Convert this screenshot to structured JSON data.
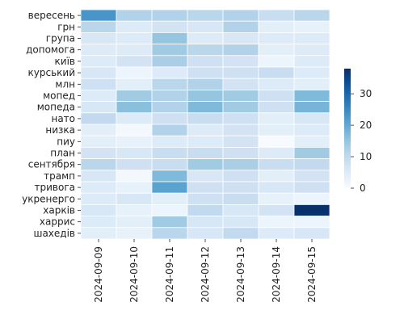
{
  "chart_data": {
    "type": "heatmap",
    "title": "",
    "xlabel": "",
    "ylabel": "",
    "x": [
      "2024-09-09",
      "2024-09-10",
      "2024-09-11",
      "2024-09-12",
      "2024-09-13",
      "2024-09-14",
      "2024-09-15"
    ],
    "y": [
      "вересень",
      "грн",
      "група",
      "допомога",
      "київ",
      "курський",
      "млн",
      "мопед",
      "мопеда",
      "нато",
      "низка",
      "пиу",
      "план",
      "сентября",
      "трамп",
      "тривога",
      "укренерго",
      "харків",
      "харрис",
      "шахедів"
    ],
    "values": [
      [
        23,
        12,
        12,
        11,
        12,
        9,
        11
      ],
      [
        11,
        5,
        7,
        6,
        12,
        4,
        3
      ],
      [
        6,
        5,
        15,
        5,
        6,
        5,
        5
      ],
      [
        5,
        5,
        14,
        11,
        12,
        4,
        5
      ],
      [
        5,
        7,
        13,
        8,
        7,
        2,
        5
      ],
      [
        6,
        2,
        5,
        8,
        8,
        9,
        5
      ],
      [
        8,
        4,
        11,
        12,
        7,
        5,
        4
      ],
      [
        5,
        14,
        12,
        15,
        14,
        8,
        17
      ],
      [
        6,
        16,
        12,
        17,
        14,
        8,
        18
      ],
      [
        10,
        5,
        8,
        9,
        8,
        4,
        6
      ],
      [
        4,
        1,
        12,
        5,
        7,
        4,
        5
      ],
      [
        4,
        3,
        5,
        5,
        7,
        0,
        4
      ],
      [
        7,
        6,
        9,
        9,
        8,
        5,
        14
      ],
      [
        11,
        8,
        9,
        14,
        13,
        9,
        10
      ],
      [
        6,
        1,
        17,
        6,
        8,
        4,
        7
      ],
      [
        5,
        3,
        21,
        8,
        8,
        6,
        8
      ],
      [
        5,
        6,
        4,
        8,
        9,
        3,
        2
      ],
      [
        6,
        3,
        2,
        10,
        6,
        7,
        38
      ],
      [
        5,
        4,
        14,
        6,
        6,
        2,
        2
      ],
      [
        4,
        3,
        11,
        6,
        10,
        5,
        6
      ]
    ],
    "vmin": 0,
    "vmax": 38,
    "colorbar_ticks": [
      0,
      10,
      20,
      30
    ],
    "colormap": "Blues",
    "grid": true,
    "colorbar": "right"
  }
}
